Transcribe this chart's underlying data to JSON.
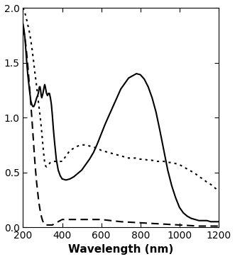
{
  "title": "",
  "xlabel": "Wavelength (nm)",
  "ylabel": "",
  "xlim": [
    200,
    1200
  ],
  "ylim": [
    0.0,
    2.0
  ],
  "yticks": [
    0.0,
    0.5,
    1.0,
    1.5,
    2.0
  ],
  "xticks": [
    200,
    400,
    600,
    800,
    1000,
    1200
  ],
  "background_color": "#ffffff",
  "solid_line": {
    "color": "#000000",
    "linewidth": 1.5,
    "x": [
      200,
      205,
      210,
      215,
      220,
      225,
      230,
      235,
      240,
      245,
      250,
      255,
      260,
      265,
      270,
      275,
      278,
      281,
      284,
      287,
      290,
      293,
      296,
      299,
      302,
      305,
      308,
      311,
      314,
      317,
      320,
      325,
      330,
      335,
      340,
      345,
      350,
      355,
      360,
      370,
      380,
      390,
      400,
      420,
      440,
      460,
      480,
      500,
      520,
      540,
      560,
      580,
      600,
      620,
      640,
      660,
      680,
      700,
      720,
      740,
      760,
      780,
      800,
      820,
      840,
      860,
      880,
      900,
      920,
      940,
      960,
      980,
      1000,
      1020,
      1040,
      1060,
      1080,
      1100,
      1120,
      1140,
      1160,
      1180,
      1200
    ],
    "y": [
      1.85,
      1.8,
      1.72,
      1.6,
      1.48,
      1.38,
      1.3,
      1.22,
      1.15,
      1.12,
      1.1,
      1.1,
      1.12,
      1.15,
      1.18,
      1.2,
      1.22,
      1.25,
      1.28,
      1.28,
      1.25,
      1.2,
      1.18,
      1.2,
      1.22,
      1.25,
      1.28,
      1.3,
      1.28,
      1.25,
      1.22,
      1.2,
      1.22,
      1.22,
      1.18,
      1.12,
      1.02,
      0.9,
      0.8,
      0.62,
      0.52,
      0.47,
      0.44,
      0.43,
      0.44,
      0.46,
      0.49,
      0.52,
      0.57,
      0.62,
      0.68,
      0.76,
      0.85,
      0.94,
      1.02,
      1.1,
      1.18,
      1.26,
      1.31,
      1.36,
      1.38,
      1.4,
      1.39,
      1.35,
      1.28,
      1.18,
      1.05,
      0.88,
      0.7,
      0.52,
      0.38,
      0.27,
      0.18,
      0.13,
      0.1,
      0.08,
      0.07,
      0.06,
      0.06,
      0.06,
      0.05,
      0.05,
      0.05
    ]
  },
  "dotted_line": {
    "color": "#000000",
    "linewidth": 1.5,
    "x": [
      200,
      205,
      210,
      215,
      220,
      225,
      230,
      235,
      240,
      245,
      250,
      255,
      260,
      265,
      270,
      275,
      280,
      285,
      290,
      295,
      300,
      305,
      310,
      315,
      320,
      325,
      330,
      335,
      340,
      350,
      360,
      370,
      380,
      390,
      400,
      420,
      440,
      460,
      480,
      500,
      520,
      540,
      560,
      580,
      600,
      620,
      640,
      660,
      680,
      700,
      720,
      740,
      760,
      780,
      800,
      820,
      840,
      860,
      880,
      900,
      920,
      940,
      960,
      980,
      1000,
      1020,
      1040,
      1060,
      1080,
      1100,
      1120,
      1140,
      1160,
      1180,
      1200
    ],
    "y": [
      2.0,
      1.98,
      1.95,
      1.92,
      1.88,
      1.84,
      1.8,
      1.76,
      1.7,
      1.64,
      1.57,
      1.5,
      1.42,
      1.35,
      1.28,
      1.2,
      1.12,
      1.05,
      0.97,
      0.88,
      0.78,
      0.68,
      0.6,
      0.56,
      0.55,
      0.56,
      0.57,
      0.58,
      0.59,
      0.6,
      0.6,
      0.6,
      0.6,
      0.6,
      0.6,
      0.65,
      0.7,
      0.72,
      0.74,
      0.75,
      0.75,
      0.74,
      0.73,
      0.72,
      0.7,
      0.69,
      0.68,
      0.67,
      0.66,
      0.65,
      0.64,
      0.63,
      0.63,
      0.63,
      0.62,
      0.62,
      0.61,
      0.61,
      0.6,
      0.6,
      0.6,
      0.59,
      0.59,
      0.58,
      0.57,
      0.55,
      0.53,
      0.51,
      0.49,
      0.46,
      0.44,
      0.41,
      0.39,
      0.36,
      0.33
    ]
  },
  "dashed_line": {
    "color": "#000000",
    "linewidth": 1.5,
    "x": [
      200,
      205,
      210,
      215,
      220,
      225,
      230,
      235,
      240,
      245,
      250,
      255,
      260,
      265,
      270,
      275,
      280,
      285,
      290,
      295,
      300,
      305,
      310,
      315,
      320,
      325,
      330,
      340,
      350,
      360,
      370,
      380,
      390,
      400,
      450,
      500,
      550,
      600,
      700,
      800,
      900,
      1000,
      1100,
      1200
    ],
    "y": [
      1.82,
      1.78,
      1.72,
      1.65,
      1.56,
      1.46,
      1.35,
      1.24,
      1.12,
      1.0,
      0.87,
      0.74,
      0.61,
      0.5,
      0.4,
      0.32,
      0.24,
      0.18,
      0.13,
      0.09,
      0.06,
      0.04,
      0.03,
      0.02,
      0.02,
      0.02,
      0.02,
      0.02,
      0.02,
      0.03,
      0.04,
      0.05,
      0.06,
      0.07,
      0.07,
      0.07,
      0.07,
      0.07,
      0.05,
      0.04,
      0.03,
      0.02,
      0.01,
      0.01
    ]
  },
  "xlabel_fontsize": 11,
  "xlabel_fontweight": "bold",
  "tick_fontsize": 10,
  "figsize": [
    3.31,
    3.66
  ],
  "dpi": 100
}
